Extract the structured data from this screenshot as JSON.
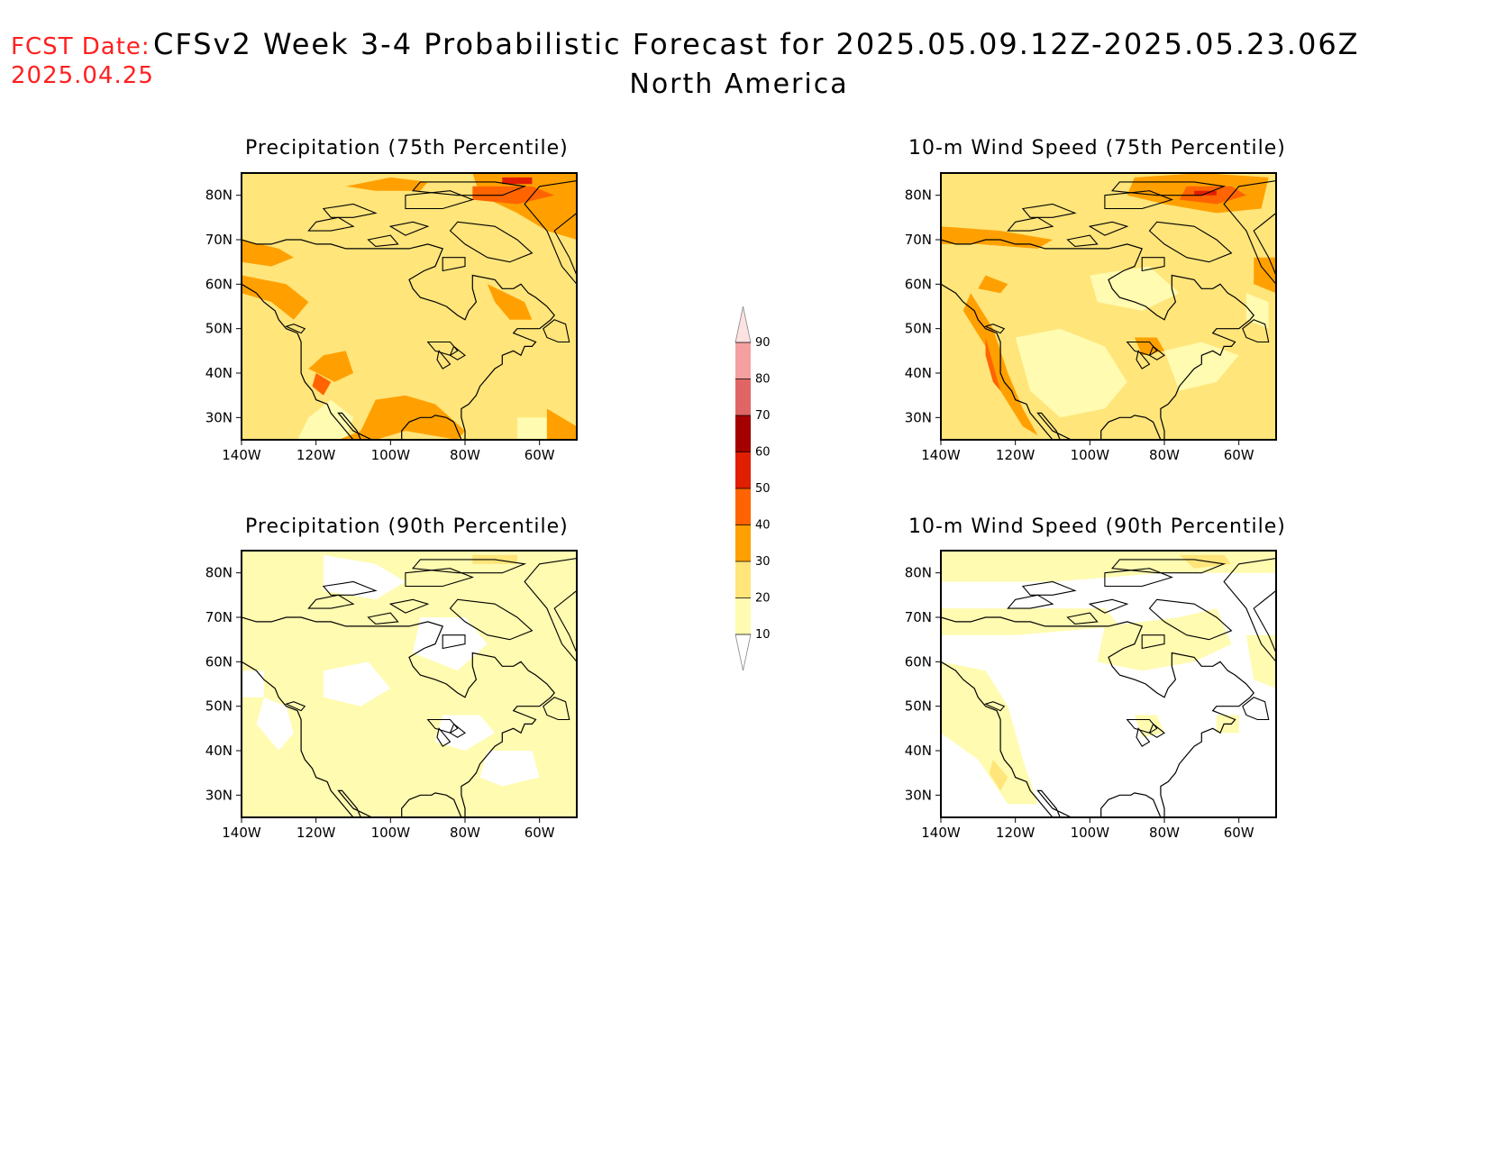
{
  "header": {
    "fcst_label": "FCST Date:",
    "fcst_date": "2025.04.25",
    "title": "CFSv2 Week 3-4 Probabilistic Forecast for 2025.05.09.12Z-2025.05.23.06Z",
    "subtitle": "North America"
  },
  "panels": [
    {
      "title": "Precipitation (75th Percentile)",
      "field": "precip75"
    },
    {
      "title": "10-m Wind Speed (75th Percentile)",
      "field": "wind75"
    },
    {
      "title": "Precipitation (90th Percentile)",
      "field": "precip90"
    },
    {
      "title": "10-m Wind Speed (90th Percentile)",
      "field": "wind90"
    }
  ],
  "axes": {
    "lat_ticks": [
      "80N",
      "70N",
      "60N",
      "50N",
      "40N",
      "30N"
    ],
    "lon_ticks": [
      "140W",
      "120W",
      "100W",
      "80W",
      "60W"
    ]
  },
  "legend": {
    "levels": [
      "90",
      "80",
      "70",
      "60",
      "50",
      "40",
      "30",
      "20",
      "10"
    ],
    "colors": {
      "10-20": "#fffbb0",
      "20-30": "#ffe57a",
      "30-40": "#ffa000",
      "40-50": "#ff6400",
      "50-60": "#e01e00",
      "60-70": "#a50000",
      "70-80": "#e06666",
      "80-90": "#f4a0a0",
      "90+": "#fde2e2"
    }
  },
  "colors": {
    "fcst_red": "#ff2020",
    "coast": "#000000"
  }
}
